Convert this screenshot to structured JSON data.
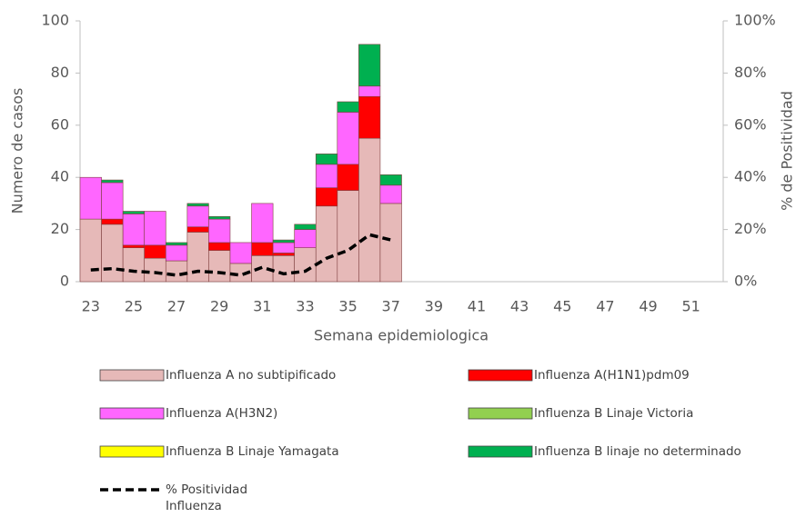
{
  "chart_data": {
    "type": "bar",
    "stacked": true,
    "x_label": "Semana epidemiologica",
    "y_label": "Numero de casos",
    "y2_label": "% de Positividad",
    "categories": [
      23,
      null,
      25,
      null,
      27,
      null,
      29,
      null,
      31,
      null,
      33,
      null,
      35,
      null,
      37,
      null,
      39,
      null,
      41,
      null,
      43,
      null,
      45,
      null,
      47,
      null,
      49,
      null,
      51,
      null
    ],
    "ylim": [
      0,
      100
    ],
    "yticks": [
      0,
      20,
      40,
      60,
      80,
      100
    ],
    "y2lim": [
      0,
      100
    ],
    "y2ticks": [
      {
        "value": 0,
        "label": "0%"
      },
      {
        "value": 20,
        "label": "20%"
      },
      {
        "value": 40,
        "label": "40%"
      },
      {
        "value": 60,
        "label": "60%"
      },
      {
        "value": 80,
        "label": "80%"
      },
      {
        "value": 100,
        "label": "100%"
      }
    ],
    "series": [
      {
        "name": "Influenza A no subtipificado",
        "color": "#e6b9b8",
        "values": [
          24,
          22,
          13,
          9,
          8,
          19,
          12,
          7,
          10,
          10,
          13,
          29,
          35,
          55,
          30,
          null,
          null,
          null,
          null,
          null,
          null,
          null,
          null,
          null,
          null,
          null,
          null,
          null,
          null,
          null
        ]
      },
      {
        "name": "Influenza A(H1N1)pdm09",
        "color": "#ff0000",
        "values": [
          0,
          2,
          1,
          5,
          0,
          2,
          3,
          0,
          5,
          1,
          0,
          7,
          10,
          16,
          0,
          null,
          null,
          null,
          null,
          null,
          null,
          null,
          null,
          null,
          null,
          null,
          null,
          null,
          null,
          null
        ]
      },
      {
        "name": "Influenza A(H3N2)",
        "color": "#ff66ff",
        "values": [
          16,
          14,
          12,
          13,
          6,
          8,
          9,
          8,
          15,
          4,
          7,
          9,
          20,
          4,
          7,
          null,
          null,
          null,
          null,
          null,
          null,
          null,
          null,
          null,
          null,
          null,
          null,
          null,
          null,
          null
        ]
      },
      {
        "name": "Influenza B Linaje Victoria",
        "color": "#92d050",
        "values": [
          0,
          0,
          0,
          0,
          0,
          0,
          0,
          0,
          0,
          0,
          0,
          0,
          0,
          0,
          0,
          null,
          null,
          null,
          null,
          null,
          null,
          null,
          null,
          null,
          null,
          null,
          null,
          null,
          null,
          null
        ]
      },
      {
        "name": "Influenza B Linaje Yamagata",
        "color": "#ffff00",
        "values": [
          0,
          0,
          0,
          0,
          0,
          0,
          0,
          0,
          0,
          0,
          0,
          0,
          0,
          0,
          0,
          null,
          null,
          null,
          null,
          null,
          null,
          null,
          null,
          null,
          null,
          null,
          null,
          null,
          null,
          null
        ]
      },
      {
        "name": "Influenza B linaje no determinado",
        "color": "#00b050",
        "values": [
          0,
          1,
          1,
          0,
          1,
          1,
          1,
          0,
          0,
          1,
          2,
          4,
          4,
          16,
          4,
          null,
          null,
          null,
          null,
          null,
          null,
          null,
          null,
          null,
          null,
          null,
          null,
          null,
          null,
          null
        ]
      },
      {
        "name": "% Positividad Influenza",
        "type": "line",
        "axis": "y2",
        "color": "#000000",
        "dashed": true,
        "values": [
          4.5,
          5,
          4,
          3.5,
          2.5,
          4,
          3.5,
          2.5,
          5.5,
          3,
          4,
          9,
          12,
          18,
          16,
          null,
          null,
          null,
          null,
          null,
          null,
          null,
          null,
          null,
          null,
          null,
          null,
          null,
          null,
          null
        ]
      }
    ]
  }
}
